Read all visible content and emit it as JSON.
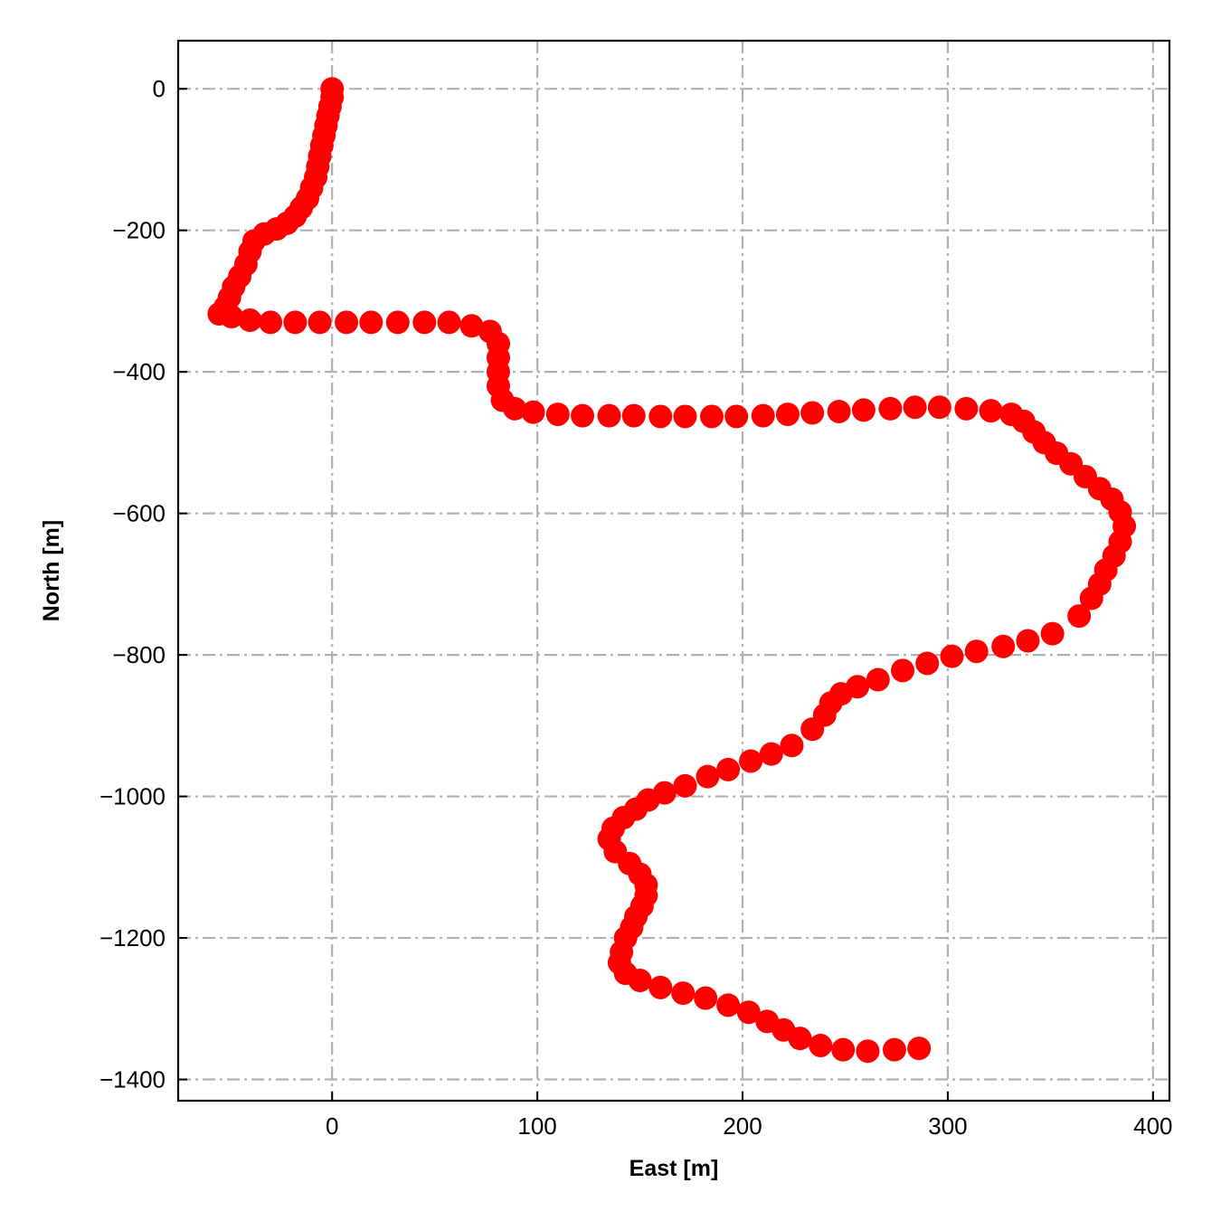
{
  "chart_data": {
    "type": "scatter",
    "title": "",
    "xlabel": "East [m]",
    "ylabel": "North [m]",
    "xlim": [
      -75,
      408
    ],
    "ylim": [
      -1430,
      68
    ],
    "x_ticks": [
      0,
      100,
      200,
      300,
      400
    ],
    "y_ticks": [
      0,
      -200,
      -400,
      -600,
      -800,
      -1000,
      -1200,
      -1400
    ],
    "x_tick_labels": [
      "0",
      "100",
      "200",
      "300",
      "400"
    ],
    "y_tick_labels": [
      "0",
      "−200",
      "−400",
      "−600",
      "−800",
      "−1000",
      "−1200",
      "−1400"
    ],
    "grid": true,
    "legend": "none",
    "marker_color": "#ff0000",
    "grid_color": "#b0b0b0",
    "series": [
      {
        "x": [
          0,
          0,
          -1,
          -2,
          -3,
          -4,
          -5,
          -6,
          -7,
          -8,
          -10,
          -12,
          -15,
          -18,
          -22,
          -27,
          -33,
          -38,
          -40,
          -42,
          -45,
          -48,
          -50,
          -52,
          -55,
          -49,
          -40,
          -30,
          -18,
          -6,
          7,
          19,
          32,
          45,
          57,
          68,
          77,
          81,
          81,
          81,
          81,
          83,
          89,
          98,
          110,
          122,
          135,
          147,
          160,
          172,
          185,
          197,
          210,
          222,
          234,
          247,
          259,
          272,
          284,
          296,
          309,
          321,
          331,
          337,
          342,
          347,
          353,
          360,
          367,
          374,
          380,
          384,
          386,
          384,
          381,
          377,
          374,
          370,
          364,
          351,
          339,
          327,
          314,
          302,
          290,
          278,
          266,
          256,
          248,
          243,
          240,
          234,
          224,
          214,
          204,
          193,
          183,
          172,
          162,
          154,
          148,
          142,
          137,
          135,
          138,
          145,
          150,
          153,
          153,
          151,
          148,
          146,
          143,
          141,
          140,
          143,
          150,
          160,
          171,
          182,
          193,
          203,
          212,
          220,
          228,
          238,
          249,
          261,
          274,
          286
        ],
        "y": [
          0,
          -12,
          -25,
          -38,
          -52,
          -66,
          -80,
          -95,
          -110,
          -125,
          -140,
          -155,
          -168,
          -180,
          -190,
          -198,
          -205,
          -215,
          -230,
          -248,
          -265,
          -280,
          -295,
          -308,
          -318,
          -322,
          -327,
          -330,
          -330,
          -330,
          -330,
          -330,
          -330,
          -330,
          -330,
          -335,
          -343,
          -360,
          -380,
          -400,
          -420,
          -440,
          -452,
          -457,
          -460,
          -462,
          -462,
          -462,
          -463,
          -463,
          -463,
          -463,
          -462,
          -460,
          -458,
          -456,
          -454,
          -452,
          -450,
          -450,
          -452,
          -455,
          -460,
          -470,
          -485,
          -500,
          -515,
          -530,
          -548,
          -565,
          -580,
          -598,
          -618,
          -640,
          -660,
          -680,
          -700,
          -720,
          -745,
          -770,
          -780,
          -788,
          -795,
          -802,
          -812,
          -822,
          -835,
          -845,
          -855,
          -868,
          -885,
          -905,
          -928,
          -940,
          -950,
          -962,
          -972,
          -985,
          -995,
          -1005,
          -1018,
          -1030,
          -1045,
          -1060,
          -1078,
          -1095,
          -1110,
          -1125,
          -1140,
          -1155,
          -1170,
          -1185,
          -1200,
          -1220,
          -1235,
          -1250,
          -1260,
          -1270,
          -1278,
          -1285,
          -1295,
          -1305,
          -1318,
          -1330,
          -1342,
          -1352,
          -1358,
          -1360,
          -1358,
          -1356
        ]
      }
    ]
  }
}
